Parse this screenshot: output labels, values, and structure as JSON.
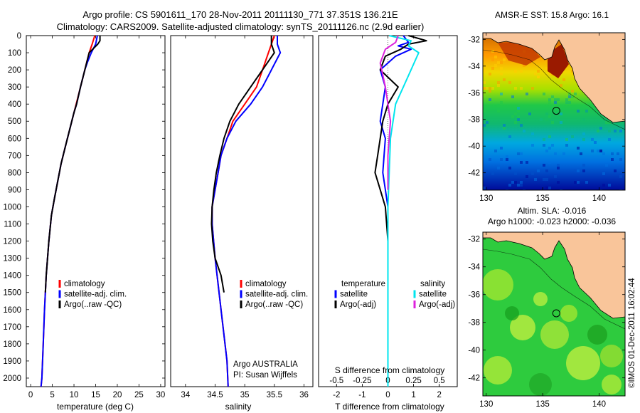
{
  "header": {
    "line1": "Argo profile: CS 5901611_170 28-Nov-2011 20111130_771 37.351S 136.21E",
    "line2": "Climatology: CARS2009. Satellite-adjusted climatology: synTS_20111126.nc (2.9d earlier)"
  },
  "colors": {
    "climatology": "#ff0000",
    "satellite": "#0000ff",
    "argo": "#000000",
    "sal_satellite": "#00e5ee",
    "sal_argo": "#dd22dd",
    "land": "#f9c59a"
  },
  "chart_data": [
    {
      "type": "line",
      "xlabel": "temperature (deg C)",
      "ylabel": "",
      "xlim": [
        -1,
        31
      ],
      "ylim": [
        2050,
        0
      ],
      "xticks": [
        0,
        5,
        10,
        15,
        20,
        25,
        30
      ],
      "yticks": [
        0,
        100,
        200,
        300,
        400,
        500,
        600,
        700,
        800,
        900,
        1000,
        1100,
        1200,
        1300,
        1400,
        1500,
        1600,
        1700,
        1800,
        1900,
        2000
      ],
      "legend": [
        "climatology",
        "satellite-adj. clim.",
        "Argo(..raw -QC)"
      ],
      "series": [
        {
          "name": "climatology",
          "color": "#ff0000",
          "x": [
            14.8,
            14.2,
            13.5,
            13.0,
            12.5,
            11.5,
            10.5,
            10.0,
            9.0,
            8.0,
            7.0,
            5.5,
            4.8,
            4.2,
            3.6,
            3.2,
            2.9,
            2.6,
            2.4
          ],
          "y": [
            0,
            50,
            100,
            150,
            200,
            300,
            400,
            450,
            550,
            650,
            750,
            950,
            1050,
            1200,
            1400,
            1600,
            1800,
            2000,
            2050
          ]
        },
        {
          "name": "satellite-adj. clim.",
          "color": "#0000ff",
          "x": [
            15.4,
            15.0,
            14.0,
            13.2,
            12.5,
            11.5,
            10.6,
            10.0,
            9.0,
            8.0,
            7.0,
            5.5,
            4.8,
            4.2,
            3.6,
            3.2,
            2.9,
            2.6,
            2.4
          ],
          "y": [
            0,
            50,
            100,
            150,
            200,
            300,
            400,
            450,
            550,
            650,
            750,
            950,
            1050,
            1200,
            1400,
            1600,
            1800,
            2000,
            2050
          ]
        },
        {
          "name": "Argo(..raw -QC)",
          "color": "#000000",
          "x": [
            16.0,
            16.0,
            15.5,
            13.5,
            13.0,
            12.5,
            11.5,
            10.6,
            10.0,
            9.0,
            8.0,
            7.0,
            5.5,
            4.8,
            4.2,
            3.6,
            3.4
          ],
          "y": [
            0,
            30,
            50,
            100,
            150,
            200,
            300,
            400,
            450,
            550,
            650,
            750,
            950,
            1050,
            1200,
            1400,
            1500
          ]
        }
      ]
    },
    {
      "type": "line",
      "xlabel": "salinity",
      "ylabel": "",
      "xlim": [
        33.75,
        36.15
      ],
      "ylim": [
        2050,
        0
      ],
      "xticks": [
        34,
        34.5,
        35,
        35.5,
        36
      ],
      "xticklabels": [
        "34",
        "34.5",
        "35",
        "35.5",
        "36"
      ],
      "legend": [
        "climatology",
        "satellite-adj. clim.",
        "Argo(..raw -QC)"
      ],
      "annotations": [
        "Argo AUSTRALIA",
        "PI: Susan Wijffels"
      ],
      "series": [
        {
          "name": "climatology",
          "color": "#ff0000",
          "x": [
            35.5,
            35.45,
            35.4,
            35.3,
            35.2,
            35.0,
            34.8,
            34.7,
            34.6,
            34.55,
            34.5,
            34.45,
            34.45,
            34.5,
            34.6,
            34.7,
            34.72
          ],
          "y": [
            0,
            50,
            100,
            200,
            300,
            400,
            500,
            600,
            700,
            800,
            900,
            1000,
            1100,
            1300,
            1600,
            1900,
            2050
          ]
        },
        {
          "name": "satellite-adj. clim.",
          "color": "#0000ff",
          "x": [
            35.55,
            35.55,
            35.6,
            35.45,
            35.3,
            35.1,
            34.85,
            34.7,
            34.6,
            34.55,
            34.5,
            34.45,
            34.45,
            34.5,
            34.6,
            34.7,
            34.72
          ],
          "y": [
            0,
            50,
            100,
            200,
            300,
            400,
            500,
            600,
            700,
            800,
            900,
            1000,
            1100,
            1300,
            1600,
            1900,
            2050
          ]
        },
        {
          "name": "Argo(..raw -QC)",
          "color": "#000000",
          "x": [
            35.45,
            35.45,
            35.5,
            35.3,
            35.1,
            34.9,
            34.75,
            34.65,
            34.58,
            34.52,
            34.48,
            34.45,
            34.44,
            34.46,
            34.5,
            34.6,
            34.65
          ],
          "y": [
            0,
            50,
            100,
            200,
            300,
            400,
            500,
            600,
            700,
            800,
            900,
            1000,
            1100,
            1200,
            1300,
            1400,
            1500
          ]
        }
      ]
    },
    {
      "type": "line",
      "xlabel": "T difference from climatology",
      "xlabel_top": "S difference from climatology",
      "xlim": [
        -2.7,
        2.7
      ],
      "ylim": [
        2050,
        0
      ],
      "xticks": [
        -2,
        -1,
        0,
        1,
        2
      ],
      "xticks_top": [
        -0.5,
        -0.25,
        0,
        0.25,
        0.5
      ],
      "xticks_top_labels": [
        "-0.5",
        "-0.25",
        "0",
        "0.25",
        "0.5"
      ],
      "legend_left": [
        "temperature",
        "satellite",
        "Argo(-adj)"
      ],
      "legend_right": [
        "salinity",
        "satellite",
        "Argo(-adj)"
      ],
      "series": [
        {
          "name": "satellite",
          "group": "temperature",
          "color": "#0000ff",
          "x": [
            0.6,
            0.8,
            0.4,
            0.9,
            0.3,
            -0.3,
            -0.1,
            -0.2,
            -0.3,
            -0.1,
            -0.2,
            -0.1,
            0,
            0,
            0
          ],
          "y": [
            0,
            40,
            60,
            80,
            120,
            200,
            300,
            400,
            500,
            600,
            800,
            900,
            1000,
            1300,
            1400
          ]
        },
        {
          "name": "Argo(-adj)",
          "group": "temperature",
          "color": "#000000",
          "x": [
            0.8,
            1.5,
            0.8,
            0.5,
            -0.1,
            -0.3,
            0.4,
            0.0,
            -0.2,
            -0.3,
            -0.4,
            -0.5,
            -0.3,
            -0.1,
            0,
            0,
            0
          ],
          "y": [
            0,
            30,
            50,
            80,
            120,
            200,
            300,
            400,
            500,
            600,
            700,
            800,
            900,
            1000,
            1200,
            1600,
            1800
          ]
        },
        {
          "name": "satellite",
          "group": "salinity",
          "color": "#00e5ee",
          "x": [
            0.05,
            0.9,
            0.8,
            1.2,
            0.9,
            0.6,
            0.3,
            0.1,
            0,
            0,
            0,
            0
          ],
          "y": [
            0,
            30,
            60,
            100,
            200,
            300,
            400,
            600,
            1000,
            1400,
            1800,
            2050
          ]
        },
        {
          "name": "Argo(-adj)",
          "group": "salinity",
          "color": "#dd22dd",
          "x": [
            0.4,
            0.3,
            -0.1,
            -0.3,
            -0.1,
            0.1,
            0,
            0
          ],
          "y": [
            0,
            40,
            80,
            160,
            300,
            500,
            700,
            900
          ]
        }
      ]
    },
    {
      "type": "heatmap",
      "title": "AMSR-E SST: 15.8 Argo: 16.1",
      "xticks": [
        130,
        135,
        140
      ],
      "yticks": [
        -32,
        -34,
        -36,
        -38,
        -40,
        -42
      ],
      "xlim": [
        129.7,
        142.3
      ],
      "ylim": [
        -43.3,
        -31.5
      ],
      "marker": {
        "lon": 136.21,
        "lat": -37.351
      }
    },
    {
      "type": "heatmap",
      "title": "Altim. SLA: -0.016",
      "subtitle": "Argo h1000: -0.023 h2000: -0.036",
      "xticks": [
        130,
        135,
        140
      ],
      "yticks": [
        -32,
        -34,
        -36,
        -38,
        -40,
        -42
      ],
      "xlim": [
        129.7,
        142.3
      ],
      "ylim": [
        -43.3,
        -31.5
      ],
      "marker": {
        "lon": 136.21,
        "lat": -37.351
      }
    }
  ],
  "footer": {
    "stamp": "©IMOS 01-Dec-2011 16:02:44"
  }
}
